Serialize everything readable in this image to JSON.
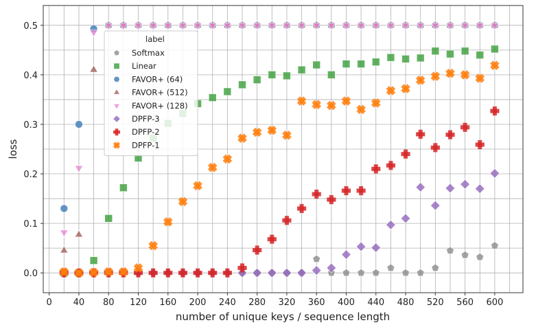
{
  "chart_data": {
    "type": "scatter",
    "xlabel": "number of unique keys / sequence length",
    "ylabel": "loss",
    "xlim": [
      -8,
      638
    ],
    "ylim": [
      -0.04,
      0.54
    ],
    "xticks": [
      0,
      40,
      80,
      120,
      160,
      200,
      240,
      280,
      320,
      360,
      400,
      440,
      480,
      520,
      560,
      600
    ],
    "yticks": [
      0.0,
      0.1,
      0.2,
      0.3,
      0.4,
      0.5
    ],
    "grid": true,
    "legend": {
      "title": "label",
      "placement": "upper-left"
    },
    "series": [
      {
        "name": "Softmax",
        "color": "#8c8c8c",
        "marker": "pentagon",
        "points": [
          [
            20,
            0
          ],
          [
            40,
            0
          ],
          [
            60,
            0
          ],
          [
            80,
            0
          ],
          [
            100,
            0
          ],
          [
            120,
            0
          ],
          [
            140,
            0
          ],
          [
            160,
            0
          ],
          [
            180,
            0
          ],
          [
            200,
            0
          ],
          [
            220,
            0
          ],
          [
            240,
            0
          ],
          [
            260,
            0
          ],
          [
            280,
            0
          ],
          [
            300,
            0
          ],
          [
            320,
            0
          ],
          [
            340,
            0
          ],
          [
            360,
            0.028
          ],
          [
            380,
            0
          ],
          [
            400,
            0
          ],
          [
            420,
            0
          ],
          [
            440,
            0
          ],
          [
            460,
            0.01
          ],
          [
            480,
            0
          ],
          [
            500,
            0
          ],
          [
            520,
            0.01
          ],
          [
            540,
            0.045
          ],
          [
            560,
            0.036
          ],
          [
            580,
            0.032
          ],
          [
            600,
            0.055
          ]
        ]
      },
      {
        "name": "Linear",
        "color": "#3a9d3a",
        "marker": "square",
        "points": [
          [
            20,
            0
          ],
          [
            40,
            0
          ],
          [
            60,
            0.025
          ],
          [
            80,
            0.11
          ],
          [
            100,
            0.172
          ],
          [
            120,
            0.232
          ],
          [
            140,
            0.272
          ],
          [
            160,
            0.302
          ],
          [
            180,
            0.322
          ],
          [
            200,
            0.342
          ],
          [
            220,
            0.354
          ],
          [
            240,
            0.366
          ],
          [
            260,
            0.38
          ],
          [
            280,
            0.39
          ],
          [
            300,
            0.4
          ],
          [
            320,
            0.398
          ],
          [
            340,
            0.41
          ],
          [
            360,
            0.42
          ],
          [
            380,
            0.4
          ],
          [
            400,
            0.422
          ],
          [
            420,
            0.422
          ],
          [
            440,
            0.426
          ],
          [
            460,
            0.435
          ],
          [
            480,
            0.432
          ],
          [
            500,
            0.434
          ],
          [
            520,
            0.448
          ],
          [
            540,
            0.442
          ],
          [
            560,
            0.448
          ],
          [
            580,
            0.44
          ],
          [
            600,
            0.452
          ]
        ]
      },
      {
        "name": "FAVOR+ (64)",
        "color": "#3d7ab8",
        "marker": "circle",
        "points": [
          [
            20,
            0.13
          ],
          [
            40,
            0.3
          ],
          [
            60,
            0.493
          ],
          [
            80,
            0.5
          ],
          [
            100,
            0.5
          ],
          [
            120,
            0.5
          ],
          [
            140,
            0.5
          ],
          [
            160,
            0.5
          ],
          [
            180,
            0.5
          ],
          [
            200,
            0.5
          ],
          [
            220,
            0.5
          ],
          [
            240,
            0.5
          ],
          [
            260,
            0.5
          ],
          [
            280,
            0.5
          ],
          [
            300,
            0.5
          ],
          [
            320,
            0.5
          ],
          [
            340,
            0.5
          ],
          [
            360,
            0.5
          ],
          [
            380,
            0.5
          ],
          [
            400,
            0.5
          ],
          [
            420,
            0.5
          ],
          [
            440,
            0.5
          ],
          [
            460,
            0.5
          ],
          [
            480,
            0.5
          ],
          [
            500,
            0.5
          ],
          [
            520,
            0.5
          ],
          [
            540,
            0.5
          ],
          [
            560,
            0.5
          ],
          [
            580,
            0.5
          ],
          [
            600,
            0.5
          ]
        ]
      },
      {
        "name": "FAVOR+ (512)",
        "color": "#a5605a",
        "marker": "triangle-up",
        "points": [
          [
            20,
            0.045
          ],
          [
            40,
            0.077
          ],
          [
            60,
            0.41
          ],
          [
            80,
            0.5
          ],
          [
            100,
            0.5
          ],
          [
            120,
            0.5
          ],
          [
            140,
            0.5
          ],
          [
            160,
            0.5
          ],
          [
            180,
            0.5
          ],
          [
            200,
            0.5
          ],
          [
            220,
            0.5
          ],
          [
            240,
            0.5
          ],
          [
            260,
            0.5
          ],
          [
            280,
            0.5
          ],
          [
            300,
            0.5
          ],
          [
            320,
            0.5
          ],
          [
            340,
            0.5
          ],
          [
            360,
            0.5
          ],
          [
            380,
            0.5
          ],
          [
            400,
            0.5
          ],
          [
            420,
            0.5
          ],
          [
            440,
            0.5
          ],
          [
            460,
            0.5
          ],
          [
            480,
            0.5
          ],
          [
            500,
            0.5
          ],
          [
            520,
            0.5
          ],
          [
            540,
            0.5
          ],
          [
            560,
            0.5
          ],
          [
            580,
            0.5
          ],
          [
            600,
            0.5
          ]
        ]
      },
      {
        "name": "FAVOR+ (128)",
        "color": "#e68ad3",
        "marker": "triangle-down",
        "points": [
          [
            20,
            0.082
          ],
          [
            40,
            0.212
          ],
          [
            60,
            0.486
          ],
          [
            80,
            0.5
          ],
          [
            100,
            0.5
          ],
          [
            120,
            0.5
          ],
          [
            140,
            0.5
          ],
          [
            160,
            0.5
          ],
          [
            180,
            0.5
          ],
          [
            200,
            0.5
          ],
          [
            220,
            0.5
          ],
          [
            240,
            0.5
          ],
          [
            260,
            0.5
          ],
          [
            280,
            0.5
          ],
          [
            300,
            0.5
          ],
          [
            320,
            0.5
          ],
          [
            340,
            0.5
          ],
          [
            360,
            0.5
          ],
          [
            380,
            0.5
          ],
          [
            400,
            0.5
          ],
          [
            420,
            0.5
          ],
          [
            440,
            0.5
          ],
          [
            460,
            0.5
          ],
          [
            480,
            0.5
          ],
          [
            500,
            0.5
          ],
          [
            520,
            0.5
          ],
          [
            540,
            0.5
          ],
          [
            560,
            0.5
          ],
          [
            580,
            0.5
          ],
          [
            600,
            0.5
          ]
        ]
      },
      {
        "name": "DPFP-3",
        "color": "#9467bd",
        "marker": "diamond",
        "points": [
          [
            20,
            0
          ],
          [
            40,
            0
          ],
          [
            60,
            0
          ],
          [
            80,
            0
          ],
          [
            100,
            0
          ],
          [
            120,
            0
          ],
          [
            140,
            0
          ],
          [
            160,
            0
          ],
          [
            180,
            0
          ],
          [
            200,
            0
          ],
          [
            220,
            0
          ],
          [
            240,
            0
          ],
          [
            260,
            0
          ],
          [
            280,
            0
          ],
          [
            300,
            0
          ],
          [
            320,
            0
          ],
          [
            340,
            0
          ],
          [
            360,
            0.005
          ],
          [
            380,
            0.01
          ],
          [
            400,
            0.037
          ],
          [
            420,
            0.053
          ],
          [
            440,
            0.051
          ],
          [
            460,
            0.097
          ],
          [
            480,
            0.11
          ],
          [
            500,
            0.173
          ],
          [
            520,
            0.136
          ],
          [
            540,
            0.171
          ],
          [
            560,
            0.179
          ],
          [
            580,
            0.17
          ],
          [
            600,
            0.201
          ]
        ]
      },
      {
        "name": "DPFP-2",
        "color": "#d62728",
        "marker": "plus",
        "points": [
          [
            20,
            0
          ],
          [
            40,
            0
          ],
          [
            60,
            0
          ],
          [
            80,
            0
          ],
          [
            100,
            0
          ],
          [
            120,
            0
          ],
          [
            140,
            0
          ],
          [
            160,
            0
          ],
          [
            180,
            0
          ],
          [
            200,
            0
          ],
          [
            220,
            0
          ],
          [
            240,
            0
          ],
          [
            260,
            0.01
          ],
          [
            280,
            0.046
          ],
          [
            300,
            0.068
          ],
          [
            320,
            0.106
          ],
          [
            340,
            0.13
          ],
          [
            360,
            0.159
          ],
          [
            380,
            0.148
          ],
          [
            400,
            0.166
          ],
          [
            420,
            0.166
          ],
          [
            440,
            0.21
          ],
          [
            460,
            0.217
          ],
          [
            480,
            0.24
          ],
          [
            500,
            0.28
          ],
          [
            520,
            0.253
          ],
          [
            540,
            0.279
          ],
          [
            560,
            0.294
          ],
          [
            580,
            0.259
          ],
          [
            600,
            0.327
          ]
        ]
      },
      {
        "name": "DPFP-1",
        "color": "#ff7f0e",
        "marker": "x",
        "points": [
          [
            20,
            0.002
          ],
          [
            40,
            0
          ],
          [
            60,
            0.001
          ],
          [
            80,
            0.002
          ],
          [
            100,
            0.002
          ],
          [
            120,
            0.01
          ],
          [
            140,
            0.055
          ],
          [
            160,
            0.103
          ],
          [
            180,
            0.144
          ],
          [
            200,
            0.176
          ],
          [
            220,
            0.213
          ],
          [
            240,
            0.23
          ],
          [
            260,
            0.272
          ],
          [
            280,
            0.284
          ],
          [
            300,
            0.288
          ],
          [
            320,
            0.278
          ],
          [
            340,
            0.347
          ],
          [
            360,
            0.34
          ],
          [
            380,
            0.338
          ],
          [
            400,
            0.347
          ],
          [
            420,
            0.33
          ],
          [
            440,
            0.343
          ],
          [
            460,
            0.368
          ],
          [
            480,
            0.372
          ],
          [
            500,
            0.389
          ],
          [
            520,
            0.397
          ],
          [
            540,
            0.403
          ],
          [
            560,
            0.4
          ],
          [
            580,
            0.393
          ],
          [
            600,
            0.419
          ]
        ]
      }
    ]
  }
}
